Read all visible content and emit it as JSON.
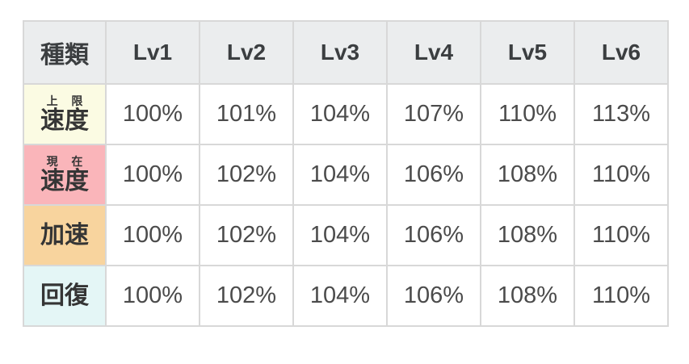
{
  "chart_data": {
    "type": "table",
    "columns": [
      "種類",
      "Lv1",
      "Lv2",
      "Lv3",
      "Lv4",
      "Lv5",
      "Lv6"
    ],
    "rows": [
      {
        "ruby": "上限",
        "label": "速度",
        "values": [
          "100%",
          "101%",
          "104%",
          "107%",
          "110%",
          "113%"
        ]
      },
      {
        "ruby": "現在",
        "label": "速度",
        "values": [
          "100%",
          "102%",
          "104%",
          "106%",
          "108%",
          "110%"
        ]
      },
      {
        "ruby": "",
        "label": "加速",
        "values": [
          "100%",
          "102%",
          "104%",
          "106%",
          "108%",
          "110%"
        ]
      },
      {
        "ruby": "",
        "label": "回復",
        "values": [
          "100%",
          "102%",
          "104%",
          "106%",
          "108%",
          "110%"
        ]
      }
    ]
  },
  "colors": {
    "header_bg": "#ebedee",
    "row_max_speed_bg": "#fbfbe3",
    "row_current_speed_bg": "#fab5ba",
    "row_acceleration_bg": "#f8d49e",
    "row_recovery_bg": "#e4f6f6",
    "border": "#d8d8d8",
    "header_text": "#3b3e40",
    "cell_text": "#4b4b4b"
  }
}
